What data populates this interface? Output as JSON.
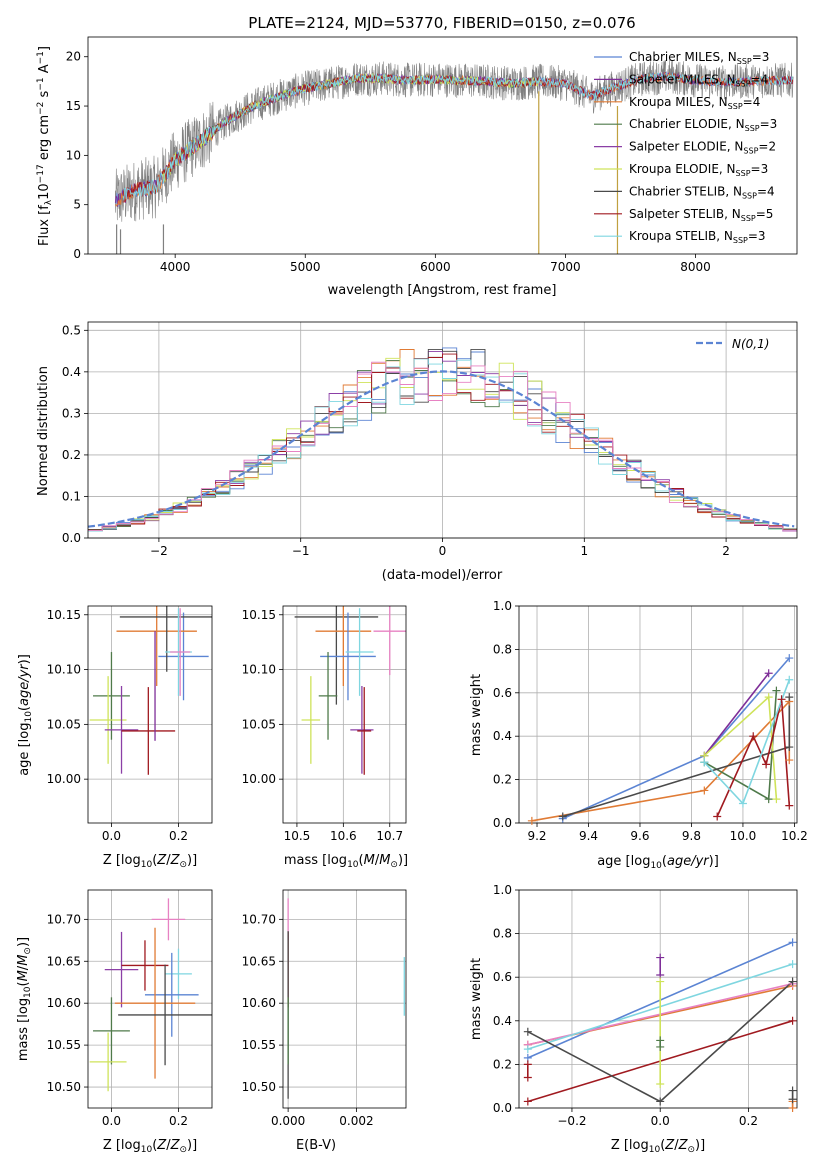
{
  "title": "PLATE=2124, MJD=53770, FIBERID=0150, z=0.076",
  "colors": {
    "Chabrier MILES": "#5b84d3",
    "Salpeter MILES": "#7e2e98",
    "Kroupa MILES": "#e07b35",
    "Chabrier ELODIE": "#4f7a4a",
    "Salpeter ELODIE": "#8b3fa6",
    "Kroupa ELODIE": "#cfe35a",
    "Chabrier STELIB": "#4a4a4a",
    "Salpeter STELIB": "#a01a20",
    "Kroupa STELIB": "#7fd6e0",
    "pink": "#e782c3",
    "gray": "#808080",
    "gauss": "#5b84d3"
  },
  "chart_data": [
    {
      "id": "spectrum",
      "type": "line",
      "title": "PLATE=2124, MJD=53770, FIBERID=0150, z=0.076",
      "xlabel": "wavelength [Angstrom, rest frame]",
      "ylabel": "Flux [f_λ 10^-17 erg cm^-2 s^-1 A^-1]",
      "xlim": [
        3330,
        8780
      ],
      "ylim": [
        0,
        22
      ],
      "xticks": [
        4000,
        5000,
        6000,
        7000,
        8000
      ],
      "yticks": [
        0,
        5,
        10,
        15,
        20
      ],
      "grid": false,
      "legend_position": "upper-right",
      "continuum": {
        "x": [
          3550,
          3700,
          3850,
          4000,
          4200,
          4400,
          4600,
          4800,
          5000,
          5200,
          5400,
          5600,
          5800,
          6000,
          6200,
          6400,
          6600,
          6800,
          7000,
          7200,
          7400,
          7600,
          7800,
          8000,
          8200,
          8400,
          8600,
          8750
        ],
        "y": [
          5.5,
          6.5,
          6.8,
          9.5,
          11.5,
          13.5,
          15.0,
          16.0,
          16.8,
          17.3,
          17.8,
          17.8,
          17.6,
          17.7,
          17.6,
          17.5,
          17.3,
          17.5,
          17.3,
          16.0,
          17.0,
          17.8,
          18.0,
          17.6,
          17.4,
          17.5,
          17.6,
          17.6
        ]
      },
      "series": [
        {
          "name": "Chabrier MILES",
          "n_ssp": "3"
        },
        {
          "name": "Salpeter MILES",
          "n_ssp": "4"
        },
        {
          "name": "Kroupa MILES",
          "n_ssp": "4"
        },
        {
          "name": "Chabrier ELODIE",
          "n_ssp": "3"
        },
        {
          "name": "Salpeter ELODIE",
          "n_ssp": "2"
        },
        {
          "name": "Kroupa ELODIE",
          "n_ssp": "3"
        },
        {
          "name": "Chabrier STELIB",
          "n_ssp": "4"
        },
        {
          "name": "Salpeter STELIB",
          "n_ssp": "5"
        },
        {
          "name": "Kroupa STELIB",
          "n_ssp": "3"
        }
      ]
    },
    {
      "id": "residuals",
      "type": "line",
      "xlabel": "(data-model)/error",
      "ylabel": "Normed distribution",
      "xlim": [
        -2.5,
        2.5
      ],
      "ylim": [
        0,
        0.52
      ],
      "xticks": [
        -2,
        -1,
        0,
        1,
        2
      ],
      "yticks": [
        0.0,
        0.1,
        0.2,
        0.3,
        0.4,
        0.5
      ],
      "grid": true,
      "legend_position": "upper-right",
      "legend": "N(0,1)",
      "bin_width": 0.1
    },
    {
      "id": "age_vs_Z",
      "type": "scatter",
      "xlabel": "Z [log10(Z/Z⊙)]",
      "ylabel": "age [log10(age/yr)]",
      "xlim": [
        -0.07,
        0.3
      ],
      "ylim": [
        9.96,
        10.158
      ],
      "xticks": [
        0.0,
        0.2
      ],
      "yticks": [
        10.0,
        10.05,
        10.1,
        10.15
      ],
      "grid": true,
      "points": [
        {
          "c": "Chabrier MILES",
          "x": 0.215,
          "y": 10.112,
          "xerr": 0.075,
          "yerr": 0.04
        },
        {
          "c": "Kroupa MILES",
          "x": 0.135,
          "y": 10.135,
          "xerr": 0.12,
          "yerr": 0.05
        },
        {
          "c": "Chabrier STELIB",
          "x": 0.165,
          "y": 10.148,
          "xerr": 0.14,
          "yerr": 0.05
        },
        {
          "c": "Kroupa STELIB",
          "x": 0.2,
          "y": 10.116,
          "xerr": 0.04,
          "yerr": 0.04
        },
        {
          "c": "pink",
          "x": 0.205,
          "y": 10.116,
          "xerr": 0.03,
          "yerr": 0.04
        },
        {
          "c": "Chabrier ELODIE",
          "x": 0.0,
          "y": 10.076,
          "xerr": 0.055,
          "yerr": 0.04
        },
        {
          "c": "Kroupa ELODIE",
          "x": -0.01,
          "y": 10.054,
          "xerr": 0.055,
          "yerr": 0.04
        },
        {
          "c": "Salpeter ELODIE",
          "x": 0.03,
          "y": 10.045,
          "xerr": 0.05,
          "yerr": 0.04
        },
        {
          "c": "Salpeter STELIB",
          "x": 0.11,
          "y": 10.044,
          "xerr": 0.08,
          "yerr": 0.04
        },
        {
          "c": "Salpeter MILES",
          "x": 0.13,
          "y": 10.085,
          "xerr": 0.0,
          "yerr": 0.05
        }
      ]
    },
    {
      "id": "age_vs_mass",
      "type": "scatter",
      "xlabel": "mass [log10(M/M⊙)]",
      "ylabel": "",
      "xlim": [
        10.47,
        10.735
      ],
      "ylim": [
        9.96,
        10.158
      ],
      "xticks": [
        10.5,
        10.6,
        10.7
      ],
      "yticks": [
        10.0,
        10.05,
        10.1,
        10.15
      ],
      "grid": true,
      "points": [
        {
          "c": "Chabrier STELIB",
          "x": 10.585,
          "y": 10.148,
          "xerr": 0.09,
          "yerr": 0.08
        },
        {
          "c": "Kroupa MILES",
          "x": 10.6,
          "y": 10.135,
          "xerr": 0.06,
          "yerr": 0.05
        },
        {
          "c": "pink",
          "x": 10.7,
          "y": 10.135,
          "xerr": 0.035,
          "yerr": 0.04
        },
        {
          "c": "Chabrier MILES",
          "x": 10.61,
          "y": 10.112,
          "xerr": 0.06,
          "yerr": 0.04
        },
        {
          "c": "Kroupa STELIB",
          "x": 10.635,
          "y": 10.116,
          "xerr": 0.03,
          "yerr": 0.04
        },
        {
          "c": "Chabrier ELODIE",
          "x": 10.567,
          "y": 10.076,
          "xerr": 0.02,
          "yerr": 0.04
        },
        {
          "c": "Kroupa ELODIE",
          "x": 10.53,
          "y": 10.054,
          "xerr": 0.02,
          "yerr": 0.04
        },
        {
          "c": "Salpeter ELODIE",
          "x": 10.64,
          "y": 10.045,
          "xerr": 0.025,
          "yerr": 0.04
        },
        {
          "c": "Salpeter STELIB",
          "x": 10.645,
          "y": 10.044,
          "xerr": 0.015,
          "yerr": 0.04
        }
      ]
    },
    {
      "id": "weight_vs_age",
      "type": "line",
      "xlabel": "age [log10(age/yr)]",
      "ylabel": "mass weight",
      "xlim": [
        9.13,
        10.21
      ],
      "ylim": [
        0.0,
        1.0
      ],
      "xticks": [
        9.2,
        9.4,
        9.6,
        9.8,
        10.0,
        10.2
      ],
      "yticks": [
        0.0,
        0.2,
        0.4,
        0.6,
        0.8,
        1.0
      ],
      "grid": true,
      "series": [
        {
          "c": "Chabrier MILES",
          "x": [
            9.3,
            9.85,
            10.18
          ],
          "y": [
            0.02,
            0.31,
            0.76
          ]
        },
        {
          "c": "Salpeter MILES",
          "x": [
            9.85,
            10.1
          ],
          "y": [
            0.31,
            0.69
          ]
        },
        {
          "c": "Kroupa MILES",
          "x": [
            9.18,
            9.85,
            10.18,
            10.18
          ],
          "y": [
            0.01,
            0.15,
            0.56,
            0.29
          ]
        },
        {
          "c": "Chabrier ELODIE",
          "x": [
            9.85,
            10.1,
            10.13
          ],
          "y": [
            0.28,
            0.11,
            0.61
          ]
        },
        {
          "c": "Kroupa ELODIE",
          "x": [
            9.85,
            10.1,
            10.13
          ],
          "y": [
            0.31,
            0.58,
            0.11
          ]
        },
        {
          "c": "Chabrier STELIB",
          "x": [
            9.3,
            10.18,
            10.18
          ],
          "y": [
            0.03,
            0.35,
            0.58
          ]
        },
        {
          "c": "Salpeter STELIB",
          "x": [
            9.9,
            10.04,
            10.09,
            10.15,
            10.18
          ],
          "y": [
            0.03,
            0.4,
            0.27,
            0.57,
            0.08
          ]
        },
        {
          "c": "Kroupa STELIB",
          "x": [
            9.85,
            10.0,
            10.18
          ],
          "y": [
            0.28,
            0.09,
            0.66
          ]
        }
      ]
    },
    {
      "id": "mass_vs_Z",
      "type": "scatter",
      "xlabel": "Z [log10(Z/Z⊙)]",
      "ylabel": "mass [log10(M/M⊙)]",
      "xlim": [
        -0.07,
        0.3
      ],
      "ylim": [
        10.475,
        10.735
      ],
      "xticks": [
        0.0,
        0.2
      ],
      "yticks": [
        10.5,
        10.55,
        10.6,
        10.65,
        10.7
      ],
      "grid": true,
      "points": [
        {
          "c": "pink",
          "x": 0.17,
          "y": 10.7,
          "xerr": 0.05,
          "yerr": 0.025
        },
        {
          "c": "Salpeter ELODIE",
          "x": 0.03,
          "y": 10.64,
          "xerr": 0.05,
          "yerr": 0.045
        },
        {
          "c": "Salpeter STELIB",
          "x": 0.1,
          "y": 10.645,
          "xerr": 0.07,
          "yerr": 0.03
        },
        {
          "c": "Kroupa STELIB",
          "x": 0.2,
          "y": 10.635,
          "xerr": 0.04,
          "yerr": 0.03
        },
        {
          "c": "Chabrier MILES",
          "x": 0.18,
          "y": 10.61,
          "xerr": 0.08,
          "yerr": 0.05
        },
        {
          "c": "Kroupa MILES",
          "x": 0.13,
          "y": 10.6,
          "xerr": 0.12,
          "yerr": 0.09
        },
        {
          "c": "Chabrier STELIB",
          "x": 0.16,
          "y": 10.586,
          "xerr": 0.14,
          "yerr": 0.06
        },
        {
          "c": "Chabrier ELODIE",
          "x": 0.0,
          "y": 10.567,
          "xerr": 0.055,
          "yerr": 0.04
        },
        {
          "c": "Kroupa ELODIE",
          "x": -0.01,
          "y": 10.53,
          "xerr": 0.055,
          "yerr": 0.035
        }
      ]
    },
    {
      "id": "mass_vs_EBV",
      "type": "scatter",
      "xlabel": "E(B-V)",
      "ylabel": "",
      "xlim": [
        -0.00015,
        0.00345
      ],
      "ylim": [
        10.475,
        10.735
      ],
      "xticks": [
        0.0,
        0.002
      ],
      "yticks": [
        10.5,
        10.55,
        10.6,
        10.65,
        10.7
      ],
      "grid": true,
      "points": [
        {
          "c": "pink",
          "x": 0.0,
          "y": 10.7,
          "xerr": 0.0,
          "yerr": 0.025
        },
        {
          "c": "Salpeter STELIB",
          "x": 0.0,
          "y": 10.64,
          "xerr": 0.0,
          "yerr": 0.045
        },
        {
          "c": "Chabrier STELIB",
          "x": 0.0,
          "y": 10.586,
          "xerr": 0.0,
          "yerr": 0.1
        },
        {
          "c": "Chabrier ELODIE",
          "x": 0.0,
          "y": 10.567,
          "xerr": 0.0,
          "yerr": 0.04
        },
        {
          "c": "Kroupa STELIB",
          "x": 0.0034,
          "y": 10.62,
          "xerr": 0.0,
          "yerr": 0.035
        }
      ]
    },
    {
      "id": "weight_vs_Z",
      "type": "line",
      "xlabel": "Z [log10(Z/Z⊙)]",
      "ylabel": "mass weight",
      "xlim": [
        -0.32,
        0.31
      ],
      "ylim": [
        0.0,
        1.0
      ],
      "xticks": [
        -0.2,
        0.0,
        0.2
      ],
      "yticks": [
        0.0,
        0.2,
        0.4,
        0.6,
        0.8,
        1.0
      ],
      "grid": true,
      "series": [
        {
          "c": "Chabrier MILES",
          "x": [
            -0.3,
            0.3
          ],
          "y": [
            0.23,
            0.76
          ]
        },
        {
          "c": "Kroupa MILES",
          "x": [
            -0.3,
            0.3
          ],
          "y": [
            0.29,
            0.56
          ]
        },
        {
          "c": "pink",
          "x": [
            -0.3,
            0.3
          ],
          "y": [
            0.29,
            0.57
          ]
        },
        {
          "c": "Kroupa STELIB",
          "x": [
            -0.3,
            0.3
          ],
          "y": [
            0.27,
            0.66
          ]
        },
        {
          "c": "Salpeter STELIB",
          "x": [
            -0.3,
            0.3
          ],
          "y": [
            0.03,
            0.4
          ]
        },
        {
          "c": "Chabrier STELIB",
          "x": [
            -0.3,
            0.0,
            0.3
          ],
          "y": [
            0.35,
            0.03,
            0.58
          ]
        },
        {
          "c": "Salpeter MILES",
          "x": [
            0.0,
            0.0
          ],
          "y": [
            0.69,
            0.61
          ]
        },
        {
          "c": "Kroupa ELODIE",
          "x": [
            0.0,
            0.0
          ],
          "y": [
            0.58,
            0.11
          ]
        },
        {
          "c": "Chabrier ELODIE",
          "x": [
            0.0,
            0.0
          ],
          "y": [
            0.31,
            0.28
          ]
        },
        {
          "c": "Salpeter STELIB",
          "x": [
            -0.3,
            -0.3
          ],
          "y": [
            0.2,
            0.14
          ]
        },
        {
          "c": "Kroupa MILES",
          "x": [
            0.3,
            0.3
          ],
          "y": [
            0.03,
            0.0
          ]
        },
        {
          "c": "Chabrier STELIB",
          "x": [
            0.3,
            0.3
          ],
          "y": [
            0.08,
            0.04
          ]
        }
      ]
    }
  ]
}
